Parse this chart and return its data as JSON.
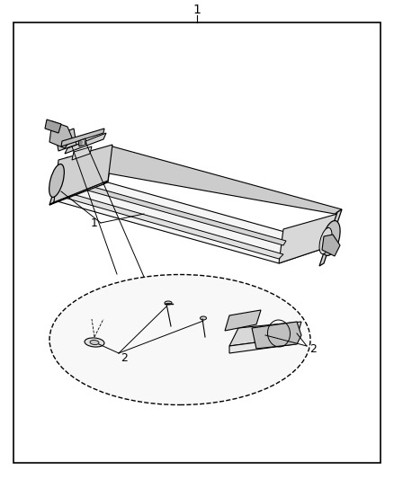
{
  "title": "1",
  "background_color": "#ffffff",
  "border_color": "#000000",
  "line_color": "#000000",
  "text_color": "#000000",
  "label1": "1",
  "label2": "2",
  "fig_width": 4.38,
  "fig_height": 5.33,
  "dpi": 100
}
